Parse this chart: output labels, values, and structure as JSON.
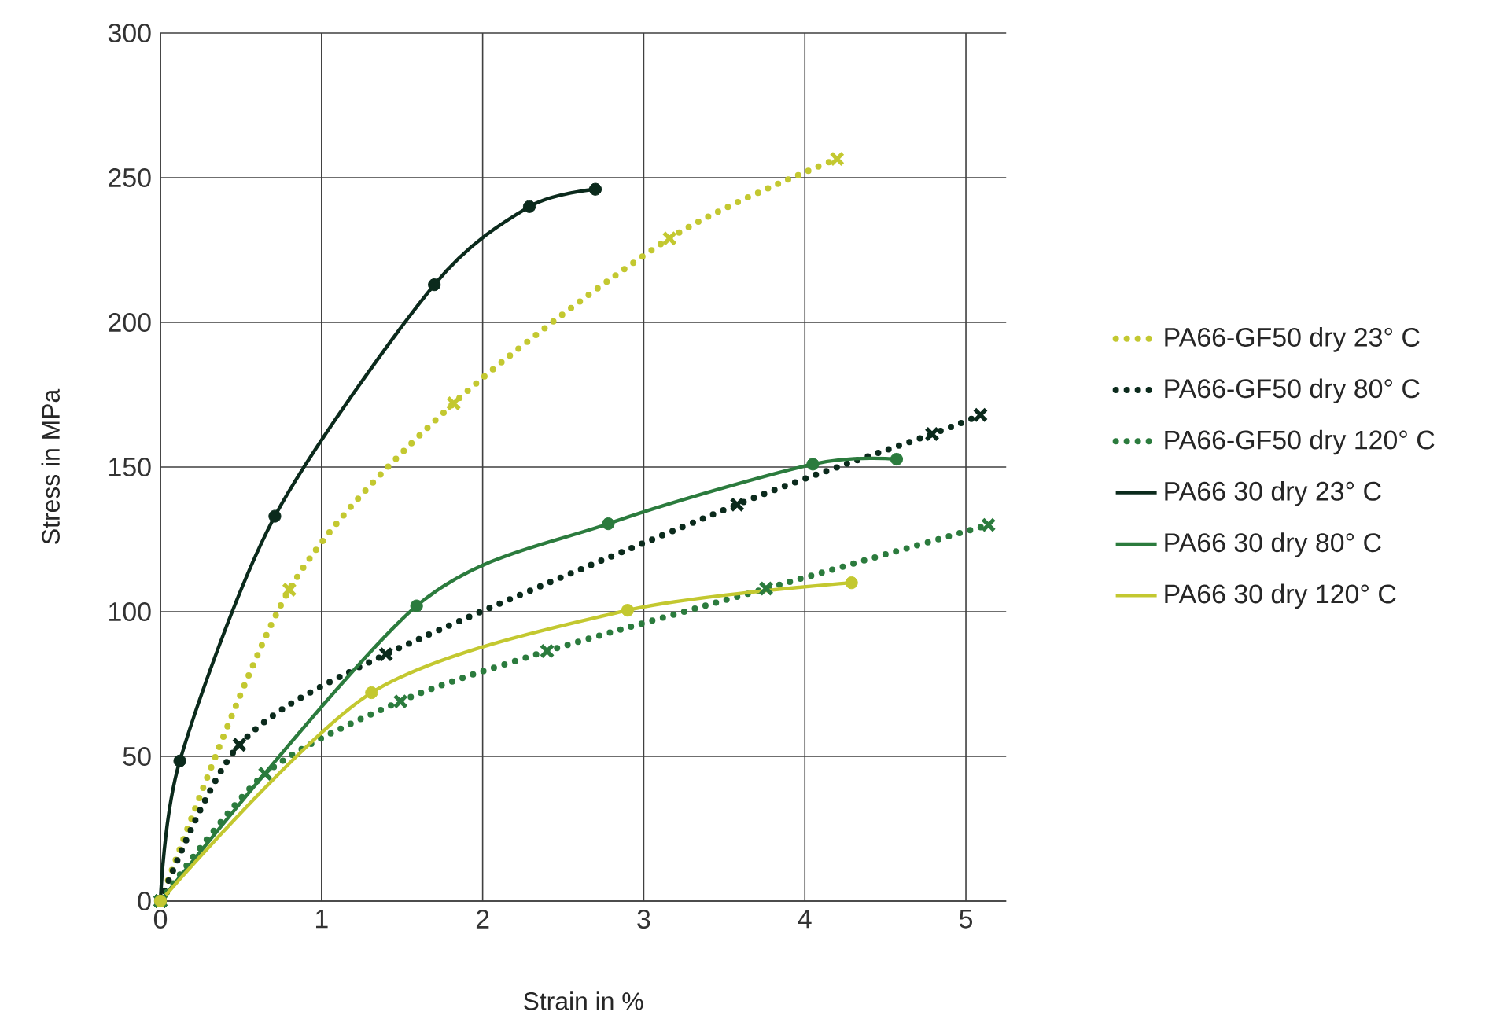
{
  "chart_data": {
    "type": "line",
    "xlabel": "Strain in %",
    "ylabel": "Stress in MPa",
    "xlim": [
      0,
      5.25
    ],
    "ylim": [
      0,
      300
    ],
    "xticks": [
      0,
      1,
      2,
      3,
      4,
      5
    ],
    "yticks": [
      0,
      50,
      100,
      150,
      200,
      250,
      300
    ],
    "grid": true,
    "legend": "right",
    "series": [
      {
        "name": "PA66-GF50 dry 23° C",
        "color": "#c3c830",
        "line_style": "dotted",
        "marker": "cross",
        "x": [
          0,
          0.8,
          1.82,
          3.16,
          4.2
        ],
        "values": [
          0,
          107.6,
          172,
          229,
          256.5
        ]
      },
      {
        "name": "PA66-GF50 dry 80° C",
        "color": "#0b2a1c",
        "line_style": "dotted",
        "marker": "cross",
        "x": [
          0,
          0.49,
          1.4,
          3.58,
          4.79,
          5.09
        ],
        "values": [
          0,
          54,
          85.3,
          137,
          161.4,
          168
        ]
      },
      {
        "name": "PA66-GF50 dry 120° C",
        "color": "#2b7b3d",
        "line_style": "dotted",
        "marker": "cross",
        "x": [
          0,
          0.65,
          1.49,
          2.4,
          3.76,
          5.14
        ],
        "values": [
          0,
          44,
          69,
          86.4,
          108,
          130
        ]
      },
      {
        "name": "PA66 30 dry 23° C",
        "color": "#0b2a1c",
        "line_style": "solid",
        "marker": "circle",
        "x": [
          0,
          0.12,
          0.71,
          1.7,
          2.29,
          2.7
        ],
        "values": [
          0,
          48.4,
          133,
          213,
          240,
          246
        ]
      },
      {
        "name": "PA66 30 dry 80° C",
        "color": "#2b7b3d",
        "line_style": "solid",
        "marker": "circle",
        "x": [
          0,
          1.59,
          2.78,
          4.05,
          4.57
        ],
        "values": [
          0,
          102,
          130.4,
          151,
          152.7
        ]
      },
      {
        "name": "PA66 30 dry 120° C",
        "color": "#c3c830",
        "line_style": "solid",
        "marker": "circle",
        "x": [
          0,
          1.31,
          2.9,
          4.29
        ],
        "values": [
          0,
          72,
          100.5,
          110
        ]
      }
    ]
  }
}
